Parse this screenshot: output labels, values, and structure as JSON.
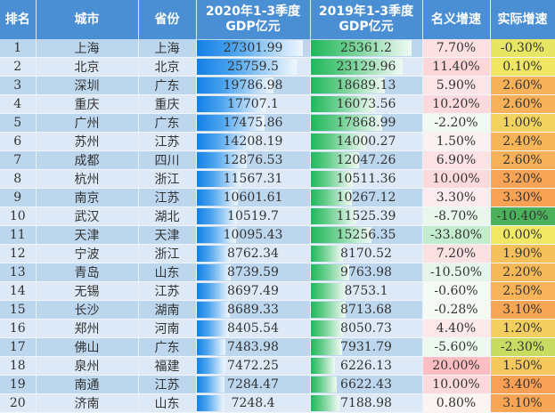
{
  "headers": {
    "rank": "排名",
    "city": "城市",
    "province": "省份",
    "gdp2020_l1": "2020年1-3季度",
    "gdp2020_l2": "GDP亿元",
    "gdp2019_l1": "2019年1-3季度",
    "gdp2019_l2": "GDP亿元",
    "nominal": "名义增速",
    "real": "实际增速"
  },
  "colors": {
    "header": "#4a8fd3",
    "bar2020": "#1380e6",
    "bar2019": "#1fb85a"
  },
  "rows": [
    {
      "rank": "1",
      "city": "上海",
      "province": "上海",
      "gdp2020": "27301.99",
      "gdp2019": "25361.2",
      "nominal": "7.70%",
      "real": "-0.30%"
    },
    {
      "rank": "2",
      "city": "北京",
      "province": "北京",
      "gdp2020": "25759.5",
      "gdp2019": "23129.96",
      "nominal": "11.40%",
      "real": "0.10%"
    },
    {
      "rank": "3",
      "city": "深圳",
      "province": "广东",
      "gdp2020": "19786.98",
      "gdp2019": "18689.13",
      "nominal": "5.90%",
      "real": "2.60%"
    },
    {
      "rank": "4",
      "city": "重庆",
      "province": "重庆",
      "gdp2020": "17707.1",
      "gdp2019": "16073.56",
      "nominal": "10.20%",
      "real": "2.60%"
    },
    {
      "rank": "5",
      "city": "广州",
      "province": "广东",
      "gdp2020": "17475.86",
      "gdp2019": "17868.99",
      "nominal": "-2.20%",
      "real": "1.00%"
    },
    {
      "rank": "6",
      "city": "苏州",
      "province": "江苏",
      "gdp2020": "14208.19",
      "gdp2019": "14000.27",
      "nominal": "1.50%",
      "real": "2.40%"
    },
    {
      "rank": "7",
      "city": "成都",
      "province": "四川",
      "gdp2020": "12876.53",
      "gdp2019": "12047.26",
      "nominal": "6.90%",
      "real": "2.60%"
    },
    {
      "rank": "8",
      "city": "杭州",
      "province": "浙江",
      "gdp2020": "11567.31",
      "gdp2019": "10511.36",
      "nominal": "10.00%",
      "real": "3.20%"
    },
    {
      "rank": "9",
      "city": "南京",
      "province": "江苏",
      "gdp2020": "10601.61",
      "gdp2019": "10267.12",
      "nominal": "3.30%",
      "real": "3.30%"
    },
    {
      "rank": "10",
      "city": "武汉",
      "province": "湖北",
      "gdp2020": "10519.7",
      "gdp2019": "11525.39",
      "nominal": "-8.70%",
      "real": "-10.40%"
    },
    {
      "rank": "11",
      "city": "天津",
      "province": "天津",
      "gdp2020": "10095.43",
      "gdp2019": "15256.35",
      "nominal": "-33.80%",
      "real": "0.00%"
    },
    {
      "rank": "12",
      "city": "宁波",
      "province": "浙江",
      "gdp2020": "8762.34",
      "gdp2019": "8170.52",
      "nominal": "7.20%",
      "real": "1.90%"
    },
    {
      "rank": "13",
      "city": "青岛",
      "province": "山东",
      "gdp2020": "8739.59",
      "gdp2019": "9763.98",
      "nominal": "-10.50%",
      "real": "2.20%"
    },
    {
      "rank": "14",
      "city": "无锡",
      "province": "江苏",
      "gdp2020": "8697.49",
      "gdp2019": "8753.1",
      "nominal": "-0.60%",
      "real": "2.50%"
    },
    {
      "rank": "15",
      "city": "长沙",
      "province": "湖南",
      "gdp2020": "8689.33",
      "gdp2019": "8713.68",
      "nominal": "-0.28%",
      "real": "3.10%"
    },
    {
      "rank": "16",
      "city": "郑州",
      "province": "河南",
      "gdp2020": "8405.54",
      "gdp2019": "8050.73",
      "nominal": "4.40%",
      "real": "1.20%"
    },
    {
      "rank": "17",
      "city": "佛山",
      "province": "广东",
      "gdp2020": "7483.98",
      "gdp2019": "7931.79",
      "nominal": "-5.60%",
      "real": "-2.30%"
    },
    {
      "rank": "18",
      "city": "泉州",
      "province": "福建",
      "gdp2020": "7472.25",
      "gdp2019": "6226.13",
      "nominal": "20.00%",
      "real": "1.50%"
    },
    {
      "rank": "19",
      "city": "南通",
      "province": "江苏",
      "gdp2020": "7284.47",
      "gdp2019": "6622.43",
      "nominal": "10.00%",
      "real": "3.40%"
    },
    {
      "rank": "20",
      "city": "济南",
      "province": "山东",
      "gdp2020": "7248.4",
      "gdp2019": "7188.98",
      "nominal": "0.80%",
      "real": "3.10%"
    }
  ]
}
